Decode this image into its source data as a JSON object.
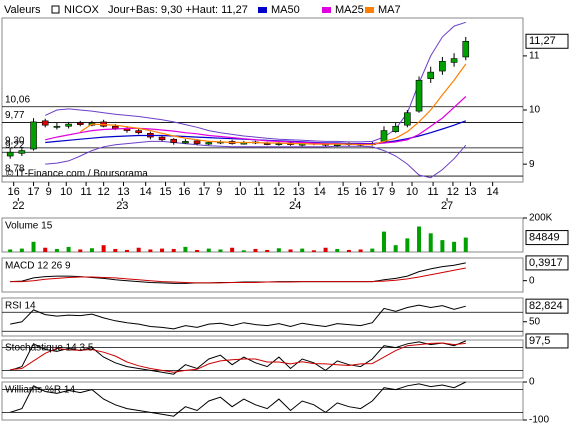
{
  "chart_data": [
    {
      "type": "candlestick",
      "label": "Valeurs",
      "title": "NICOX",
      "subtitle": "Jour+Bas: 9,30 +Haut: 11,27",
      "annotation": "© IT-Finance.com / Boursorama",
      "up_color": "#00a000",
      "down_color": "#e00000",
      "xlim": [
        -0.7,
        43.9
      ],
      "ylim": [
        8.67,
        11.7
      ],
      "yticks": [
        9,
        10,
        11
      ],
      "xticks": [
        {
          "value": 0.3,
          "label": "16"
        },
        {
          "value": 2.0,
          "label": "17"
        },
        {
          "value": 3.3,
          "label": "9"
        },
        {
          "value": 4.8,
          "label": "10"
        },
        {
          "value": 6.5,
          "label": "11"
        },
        {
          "value": 8.0,
          "label": "12"
        },
        {
          "value": 9.7,
          "label": "13"
        },
        {
          "value": 11.6,
          "label": "14"
        },
        {
          "value": 13.3,
          "label": "15"
        },
        {
          "value": 14.9,
          "label": "16"
        },
        {
          "value": 16.6,
          "label": "17"
        },
        {
          "value": 17.9,
          "label": "9"
        },
        {
          "value": 19.7,
          "label": "10"
        },
        {
          "value": 21.3,
          "label": "11"
        },
        {
          "value": 23.0,
          "label": "12"
        },
        {
          "value": 24.7,
          "label": "13"
        },
        {
          "value": 26.5,
          "label": "14"
        },
        {
          "value": 28.5,
          "label": "15"
        },
        {
          "value": 30.0,
          "label": "16"
        },
        {
          "value": 31.5,
          "label": "17"
        },
        {
          "value": 32.7,
          "label": "9"
        },
        {
          "value": 34.4,
          "label": "10"
        },
        {
          "value": 36.2,
          "label": "11"
        },
        {
          "value": 37.9,
          "label": "12"
        },
        {
          "value": 39.4,
          "label": "13"
        },
        {
          "value": 41.3,
          "label": "14"
        }
      ],
      "day_ticks": [
        {
          "value": 0.7,
          "label": "22"
        },
        {
          "value": 9.6,
          "label": "23"
        },
        {
          "value": 24.4,
          "label": "24"
        },
        {
          "value": 37.4,
          "label": "27"
        }
      ],
      "levels": [
        {
          "value": 10.06,
          "label": "10,06"
        },
        {
          "value": 9.77,
          "label": "9,77"
        },
        {
          "value": 9.3,
          "label": "9,30"
        },
        {
          "value": 9.22,
          "label": "9,22"
        },
        {
          "value": 8.78,
          "label": "8,78"
        }
      ],
      "last": {
        "value": 11.27,
        "label": "11,27"
      },
      "open": [
        9.15,
        9.2,
        9.28,
        9.8,
        9.68,
        9.7,
        9.76,
        9.72,
        9.78,
        9.7,
        9.66,
        9.62,
        9.57,
        9.5,
        9.46,
        9.39,
        9.43,
        9.37,
        9.39,
        9.42,
        9.37,
        9.41,
        9.38,
        9.36,
        9.39,
        9.35,
        9.39,
        9.38,
        9.34,
        9.38,
        9.37,
        9.36,
        9.4,
        9.6,
        9.72,
        9.98,
        10.58,
        10.72,
        10.88,
        10.98
      ],
      "high": [
        9.3,
        9.32,
        9.85,
        9.84,
        9.76,
        9.78,
        9.8,
        9.8,
        9.82,
        9.74,
        9.7,
        9.66,
        9.6,
        9.53,
        9.48,
        9.46,
        9.46,
        9.43,
        9.44,
        9.45,
        9.43,
        9.43,
        9.41,
        9.41,
        9.41,
        9.41,
        9.41,
        9.4,
        9.4,
        9.4,
        9.39,
        9.41,
        9.7,
        9.76,
        10.0,
        10.62,
        10.8,
        10.98,
        11.05,
        11.35
      ],
      "low": [
        9.1,
        9.15,
        9.25,
        9.68,
        9.64,
        9.66,
        9.7,
        9.7,
        9.68,
        9.63,
        9.58,
        9.55,
        9.46,
        9.42,
        9.36,
        9.37,
        9.35,
        9.35,
        9.37,
        9.36,
        9.36,
        9.37,
        9.35,
        9.34,
        9.34,
        9.33,
        9.35,
        9.33,
        9.32,
        9.33,
        9.33,
        9.34,
        9.38,
        9.58,
        9.68,
        9.95,
        10.5,
        10.65,
        10.8,
        10.92
      ],
      "close": [
        9.22,
        9.25,
        9.78,
        9.72,
        9.7,
        9.74,
        9.73,
        9.76,
        9.7,
        9.66,
        9.62,
        9.58,
        9.5,
        9.45,
        9.4,
        9.42,
        9.38,
        9.4,
        9.41,
        9.38,
        9.4,
        9.39,
        9.37,
        9.38,
        9.36,
        9.38,
        9.37,
        9.35,
        9.37,
        9.36,
        9.35,
        9.38,
        9.62,
        9.7,
        9.95,
        10.55,
        10.7,
        10.9,
        10.95,
        11.27
      ],
      "bands": {
        "color": "#6a3fc8",
        "upper": [
          null,
          null,
          null,
          9.9,
          10.0,
          10.02,
          10.0,
          9.98,
          9.95,
          9.92,
          9.9,
          9.88,
          9.85,
          9.82,
          9.78,
          9.73,
          9.68,
          9.62,
          9.58,
          9.55,
          9.52,
          9.5,
          9.48,
          9.46,
          9.45,
          9.44,
          9.43,
          9.42,
          9.42,
          9.41,
          9.41,
          9.42,
          9.5,
          9.65,
          9.95,
          10.5,
          11.0,
          11.35,
          11.55,
          11.62
        ],
        "lower": [
          null,
          null,
          null,
          9.0,
          9.02,
          9.06,
          9.15,
          9.25,
          9.32,
          9.36,
          9.38,
          9.4,
          9.42,
          9.42,
          9.4,
          9.38,
          9.36,
          9.34,
          9.33,
          9.32,
          9.32,
          9.32,
          9.32,
          9.32,
          9.32,
          9.32,
          9.32,
          9.32,
          9.33,
          9.33,
          9.33,
          9.32,
          9.25,
          9.15,
          9.0,
          8.8,
          8.75,
          8.9,
          9.1,
          9.35
        ]
      },
      "series": [
        {
          "name": "MA50",
          "color": "#0000cc",
          "values": [
            null,
            null,
            null,
            9.4,
            9.42,
            9.44,
            9.46,
            9.48,
            9.5,
            9.51,
            9.52,
            9.53,
            9.53,
            9.53,
            9.52,
            9.51,
            9.5,
            9.49,
            9.48,
            9.47,
            9.46,
            9.45,
            9.44,
            9.43,
            9.42,
            9.41,
            9.4,
            9.39,
            9.39,
            9.38,
            9.38,
            9.38,
            9.4,
            9.43,
            9.47,
            9.52,
            9.58,
            9.65,
            9.72,
            9.8
          ]
        },
        {
          "name": "MA25",
          "color": "#e000e0",
          "values": [
            null,
            null,
            null,
            9.45,
            9.5,
            9.54,
            9.58,
            9.62,
            9.64,
            9.65,
            9.66,
            9.66,
            9.65,
            9.63,
            9.61,
            9.58,
            9.56,
            9.53,
            9.51,
            9.49,
            9.47,
            9.45,
            9.43,
            9.42,
            9.41,
            9.4,
            9.39,
            9.38,
            9.38,
            9.37,
            9.37,
            9.37,
            9.39,
            9.41,
            9.45,
            9.55,
            9.7,
            9.85,
            10.05,
            10.25
          ]
        },
        {
          "name": "MA7",
          "color": "#ff8000",
          "values": [
            null,
            null,
            null,
            null,
            null,
            null,
            9.6,
            9.74,
            9.73,
            9.72,
            9.69,
            9.66,
            9.62,
            9.57,
            9.52,
            9.48,
            9.45,
            9.42,
            9.41,
            9.4,
            9.4,
            9.4,
            9.39,
            9.39,
            9.38,
            9.38,
            9.37,
            9.37,
            9.37,
            9.37,
            9.36,
            9.36,
            9.42,
            9.48,
            9.6,
            9.78,
            10.0,
            10.28,
            10.55,
            10.85
          ]
        }
      ]
    },
    {
      "type": "bar",
      "title": "Volume 15",
      "color": "#00a000",
      "ylim": [
        0,
        200000
      ],
      "yticks": [
        {
          "value": 200000,
          "label": "200K"
        }
      ],
      "last": 84849,
      "values": [
        15000,
        20000,
        60000,
        25000,
        18000,
        30000,
        15000,
        22000,
        40000,
        18000,
        12000,
        25000,
        15000,
        20000,
        18000,
        30000,
        12000,
        20000,
        15000,
        25000,
        10000,
        18000,
        12000,
        22000,
        15000,
        20000,
        10000,
        25000,
        18000,
        12000,
        15000,
        20000,
        120000,
        40000,
        80000,
        150000,
        110000,
        70000,
        60000,
        84849
      ]
    },
    {
      "type": "line",
      "title": "MACD 12 26 9",
      "ylim": [
        -0.25,
        0.5
      ],
      "yticks": [
        0
      ],
      "last": {
        "value": 0.3917,
        "label": "0,3917"
      },
      "series": [
        {
          "color": "#000000",
          "values": [
            -0.02,
            -0.01,
            0.06,
            0.09,
            0.1,
            0.1,
            0.09,
            0.07,
            0.05,
            0.02,
            0.0,
            -0.02,
            -0.04,
            -0.05,
            -0.06,
            -0.06,
            -0.05,
            -0.05,
            -0.04,
            -0.04,
            -0.03,
            -0.03,
            -0.03,
            -0.02,
            -0.02,
            -0.02,
            -0.02,
            -0.02,
            -0.02,
            -0.02,
            -0.02,
            -0.02,
            0.02,
            0.05,
            0.1,
            0.2,
            0.26,
            0.31,
            0.34,
            0.3917
          ]
        },
        {
          "color": "#cc0000",
          "values": [
            -0.02,
            -0.02,
            0.0,
            0.03,
            0.05,
            0.07,
            0.08,
            0.08,
            0.07,
            0.06,
            0.04,
            0.02,
            0.0,
            -0.02,
            -0.03,
            -0.04,
            -0.05,
            -0.05,
            -0.05,
            -0.04,
            -0.04,
            -0.04,
            -0.03,
            -0.03,
            -0.03,
            -0.02,
            -0.02,
            -0.02,
            -0.02,
            -0.02,
            -0.02,
            -0.02,
            -0.01,
            0.01,
            0.04,
            0.08,
            0.13,
            0.18,
            0.23,
            0.28
          ]
        }
      ]
    },
    {
      "type": "line",
      "title": "RSI 14",
      "ylim": [
        20,
        100
      ],
      "yticks": [
        50
      ],
      "levels": [
        70,
        30
      ],
      "last": {
        "value": 82.824,
        "label": "82,824"
      },
      "series": [
        {
          "color": "#000000",
          "values": [
            45,
            50,
            75,
            65,
            62,
            64,
            63,
            66,
            58,
            52,
            48,
            45,
            40,
            38,
            35,
            42,
            38,
            45,
            47,
            42,
            48,
            44,
            42,
            46,
            40,
            47,
            43,
            40,
            46,
            44,
            42,
            48,
            78,
            72,
            80,
            85,
            80,
            84,
            76,
            82.824
          ]
        }
      ]
    },
    {
      "type": "line",
      "title": "Stochastique 14 3 5",
      "ylim": [
        0,
        100
      ],
      "levels": [
        80,
        20
      ],
      "last": {
        "value": 97.5,
        "label": "97,5"
      },
      "series": [
        {
          "color": "#000000",
          "values": [
            20,
            30,
            90,
            75,
            70,
            78,
            72,
            80,
            55,
            40,
            30,
            25,
            20,
            15,
            10,
            35,
            25,
            50,
            60,
            35,
            55,
            40,
            30,
            55,
            25,
            50,
            40,
            20,
            45,
            35,
            30,
            50,
            85,
            80,
            90,
            95,
            88,
            92,
            85,
            97.5
          ]
        },
        {
          "color": "#cc0000",
          "values": [
            22,
            25,
            45,
            65,
            78,
            74,
            73,
            75,
            68,
            58,
            42,
            32,
            25,
            20,
            15,
            20,
            23,
            37,
            45,
            48,
            50,
            50,
            42,
            42,
            37,
            43,
            38,
            37,
            35,
            33,
            37,
            38,
            55,
            72,
            85,
            88,
            91,
            92,
            88,
            91
          ]
        }
      ]
    },
    {
      "type": "line",
      "title": "Williams %R 14",
      "ylim": [
        -100,
        0
      ],
      "yticks": [
        0,
        -100
      ],
      "levels": [
        -20,
        -80
      ],
      "series": [
        {
          "color": "#000000",
          "values": [
            -80,
            -70,
            -10,
            -25,
            -30,
            -22,
            -28,
            -20,
            -45,
            -60,
            -70,
            -75,
            -80,
            -85,
            -90,
            -65,
            -75,
            -50,
            -40,
            -65,
            -45,
            -60,
            -70,
            -45,
            -75,
            -50,
            -60,
            -80,
            -55,
            -65,
            -70,
            -50,
            -15,
            -20,
            -10,
            -5,
            -12,
            -8,
            -15,
            0
          ]
        }
      ]
    }
  ]
}
